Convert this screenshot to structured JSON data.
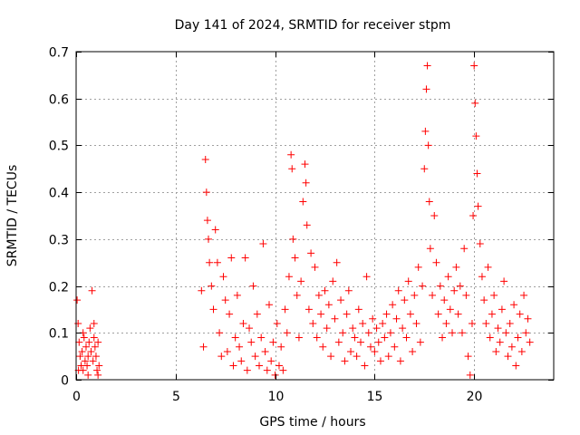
{
  "chart_data": {
    "type": "scatter",
    "title": "Day 141 of 2024, SRMTID for receiver stpm",
    "xlabel": "GPS time / hours",
    "ylabel": "SRMTID / TECUs",
    "xlim": [
      0,
      24
    ],
    "ylim": [
      0,
      0.7
    ],
    "xticks": [
      0,
      5,
      10,
      15,
      20
    ],
    "yticks": [
      0,
      0.1,
      0.2,
      0.3,
      0.4,
      0.5,
      0.6,
      0.7
    ],
    "xtick_labels": [
      "0",
      "5",
      "10",
      "15",
      "20"
    ],
    "ytick_labels": [
      "0",
      "0.1",
      "0.2",
      "0.3",
      "0.4",
      "0.5",
      "0.6",
      "0.7"
    ],
    "grid": true,
    "marker": "+",
    "color": "#ff0000",
    "series": [
      {
        "name": "SRMTID",
        "points": [
          [
            0.05,
            0.17
          ],
          [
            0.1,
            0.12
          ],
          [
            0.15,
            0.08
          ],
          [
            0.2,
            0.05
          ],
          [
            0.25,
            0.03
          ],
          [
            0.3,
            0.06
          ],
          [
            0.35,
            0.02
          ],
          [
            0.4,
            0.09
          ],
          [
            0.45,
            0.04
          ],
          [
            0.5,
            0.07
          ],
          [
            0.55,
            0.03
          ],
          [
            0.6,
            0.05
          ],
          [
            0.65,
            0.08
          ],
          [
            0.7,
            0.11
          ],
          [
            0.75,
            0.06
          ],
          [
            0.8,
            0.19
          ],
          [
            0.85,
            0.04
          ],
          [
            0.9,
            0.09
          ],
          [
            0.95,
            0.07
          ],
          [
            1.0,
            0.05
          ],
          [
            1.05,
            0.02
          ],
          [
            1.1,
            0.08
          ],
          [
            1.15,
            0.03
          ],
          [
            0.12,
            0.02
          ],
          [
            0.35,
            0.1
          ],
          [
            0.6,
            0.01
          ],
          [
            0.9,
            0.12
          ],
          [
            1.1,
            0.01
          ],
          [
            6.3,
            0.19
          ],
          [
            6.4,
            0.07
          ],
          [
            6.5,
            0.47
          ],
          [
            6.55,
            0.4
          ],
          [
            6.6,
            0.34
          ],
          [
            6.65,
            0.3
          ],
          [
            6.7,
            0.25
          ],
          [
            6.8,
            0.2
          ],
          [
            6.9,
            0.15
          ],
          [
            7.0,
            0.32
          ],
          [
            7.1,
            0.25
          ],
          [
            7.2,
            0.1
          ],
          [
            7.3,
            0.05
          ],
          [
            7.4,
            0.22
          ],
          [
            7.5,
            0.17
          ],
          [
            7.6,
            0.06
          ],
          [
            7.7,
            0.14
          ],
          [
            7.8,
            0.26
          ],
          [
            7.9,
            0.03
          ],
          [
            8.0,
            0.09
          ],
          [
            8.1,
            0.18
          ],
          [
            8.2,
            0.07
          ],
          [
            8.3,
            0.04
          ],
          [
            8.4,
            0.12
          ],
          [
            8.5,
            0.26
          ],
          [
            8.6,
            0.02
          ],
          [
            8.7,
            0.11
          ],
          [
            8.8,
            0.08
          ],
          [
            8.9,
            0.2
          ],
          [
            9.0,
            0.05
          ],
          [
            9.1,
            0.14
          ],
          [
            9.2,
            0.03
          ],
          [
            9.3,
            0.09
          ],
          [
            9.4,
            0.29
          ],
          [
            9.5,
            0.06
          ],
          [
            9.6,
            0.02
          ],
          [
            9.7,
            0.16
          ],
          [
            9.8,
            0.04
          ],
          [
            9.9,
            0.08
          ],
          [
            10.0,
            0.01
          ],
          [
            10.1,
            0.12
          ],
          [
            10.2,
            0.03
          ],
          [
            10.3,
            0.07
          ],
          [
            10.4,
            0.02
          ],
          [
            10.5,
            0.15
          ],
          [
            10.6,
            0.1
          ],
          [
            10.7,
            0.22
          ],
          [
            10.8,
            0.48
          ],
          [
            10.85,
            0.45
          ],
          [
            10.9,
            0.3
          ],
          [
            11.0,
            0.26
          ],
          [
            11.1,
            0.18
          ],
          [
            11.2,
            0.09
          ],
          [
            11.3,
            0.21
          ],
          [
            11.4,
            0.38
          ],
          [
            11.5,
            0.46
          ],
          [
            11.55,
            0.42
          ],
          [
            11.6,
            0.33
          ],
          [
            11.7,
            0.15
          ],
          [
            11.8,
            0.27
          ],
          [
            11.9,
            0.12
          ],
          [
            12.0,
            0.24
          ],
          [
            12.1,
            0.09
          ],
          [
            12.2,
            0.18
          ],
          [
            12.3,
            0.14
          ],
          [
            12.4,
            0.07
          ],
          [
            12.5,
            0.19
          ],
          [
            12.6,
            0.11
          ],
          [
            12.7,
            0.16
          ],
          [
            12.8,
            0.05
          ],
          [
            12.9,
            0.21
          ],
          [
            13.0,
            0.13
          ],
          [
            13.1,
            0.25
          ],
          [
            13.2,
            0.08
          ],
          [
            13.3,
            0.17
          ],
          [
            13.4,
            0.1
          ],
          [
            13.5,
            0.04
          ],
          [
            13.6,
            0.14
          ],
          [
            13.7,
            0.19
          ],
          [
            13.8,
            0.06
          ],
          [
            13.9,
            0.11
          ],
          [
            14.0,
            0.09
          ],
          [
            14.1,
            0.05
          ],
          [
            14.2,
            0.15
          ],
          [
            14.3,
            0.08
          ],
          [
            14.4,
            0.12
          ],
          [
            14.5,
            0.03
          ],
          [
            14.6,
            0.22
          ],
          [
            14.7,
            0.1
          ],
          [
            14.8,
            0.07
          ],
          [
            14.9,
            0.13
          ],
          [
            15.0,
            0.06
          ],
          [
            15.1,
            0.11
          ],
          [
            15.2,
            0.08
          ],
          [
            15.3,
            0.04
          ],
          [
            15.4,
            0.12
          ],
          [
            15.5,
            0.09
          ],
          [
            15.6,
            0.14
          ],
          [
            15.7,
            0.05
          ],
          [
            15.8,
            0.1
          ],
          [
            15.9,
            0.16
          ],
          [
            16.0,
            0.07
          ],
          [
            16.1,
            0.13
          ],
          [
            16.2,
            0.19
          ],
          [
            16.3,
            0.04
          ],
          [
            16.4,
            0.11
          ],
          [
            16.5,
            0.17
          ],
          [
            16.6,
            0.09
          ],
          [
            16.7,
            0.21
          ],
          [
            16.8,
            0.14
          ],
          [
            16.9,
            0.06
          ],
          [
            17.0,
            0.18
          ],
          [
            17.1,
            0.12
          ],
          [
            17.2,
            0.24
          ],
          [
            17.3,
            0.08
          ],
          [
            17.4,
            0.2
          ],
          [
            17.5,
            0.45
          ],
          [
            17.55,
            0.53
          ],
          [
            17.6,
            0.62
          ],
          [
            17.65,
            0.67
          ],
          [
            17.7,
            0.5
          ],
          [
            17.75,
            0.38
          ],
          [
            17.8,
            0.28
          ],
          [
            17.9,
            0.18
          ],
          [
            18.0,
            0.35
          ],
          [
            18.1,
            0.25
          ],
          [
            18.2,
            0.14
          ],
          [
            18.3,
            0.2
          ],
          [
            18.4,
            0.09
          ],
          [
            18.5,
            0.17
          ],
          [
            18.6,
            0.12
          ],
          [
            18.7,
            0.22
          ],
          [
            18.8,
            0.15
          ],
          [
            18.9,
            0.1
          ],
          [
            19.0,
            0.19
          ],
          [
            19.1,
            0.24
          ],
          [
            19.2,
            0.14
          ],
          [
            19.3,
            0.2
          ],
          [
            19.4,
            0.1
          ],
          [
            19.5,
            0.28
          ],
          [
            19.6,
            0.18
          ],
          [
            19.7,
            0.05
          ],
          [
            19.8,
            0.01
          ],
          [
            19.9,
            0.12
          ],
          [
            19.95,
            0.35
          ],
          [
            20.0,
            0.67
          ],
          [
            20.05,
            0.59
          ],
          [
            20.1,
            0.52
          ],
          [
            20.15,
            0.44
          ],
          [
            20.2,
            0.37
          ],
          [
            20.3,
            0.29
          ],
          [
            20.4,
            0.22
          ],
          [
            20.5,
            0.17
          ],
          [
            20.6,
            0.12
          ],
          [
            20.7,
            0.24
          ],
          [
            20.8,
            0.09
          ],
          [
            20.9,
            0.14
          ],
          [
            21.0,
            0.18
          ],
          [
            21.1,
            0.06
          ],
          [
            21.2,
            0.11
          ],
          [
            21.3,
            0.08
          ],
          [
            21.4,
            0.15
          ],
          [
            21.5,
            0.21
          ],
          [
            21.6,
            0.1
          ],
          [
            21.7,
            0.05
          ],
          [
            21.8,
            0.12
          ],
          [
            21.9,
            0.07
          ],
          [
            22.0,
            0.16
          ],
          [
            22.1,
            0.03
          ],
          [
            22.2,
            0.09
          ],
          [
            22.3,
            0.14
          ],
          [
            22.4,
            0.06
          ],
          [
            22.5,
            0.18
          ],
          [
            22.6,
            0.1
          ],
          [
            22.7,
            0.13
          ],
          [
            22.8,
            0.08
          ]
        ]
      }
    ]
  }
}
